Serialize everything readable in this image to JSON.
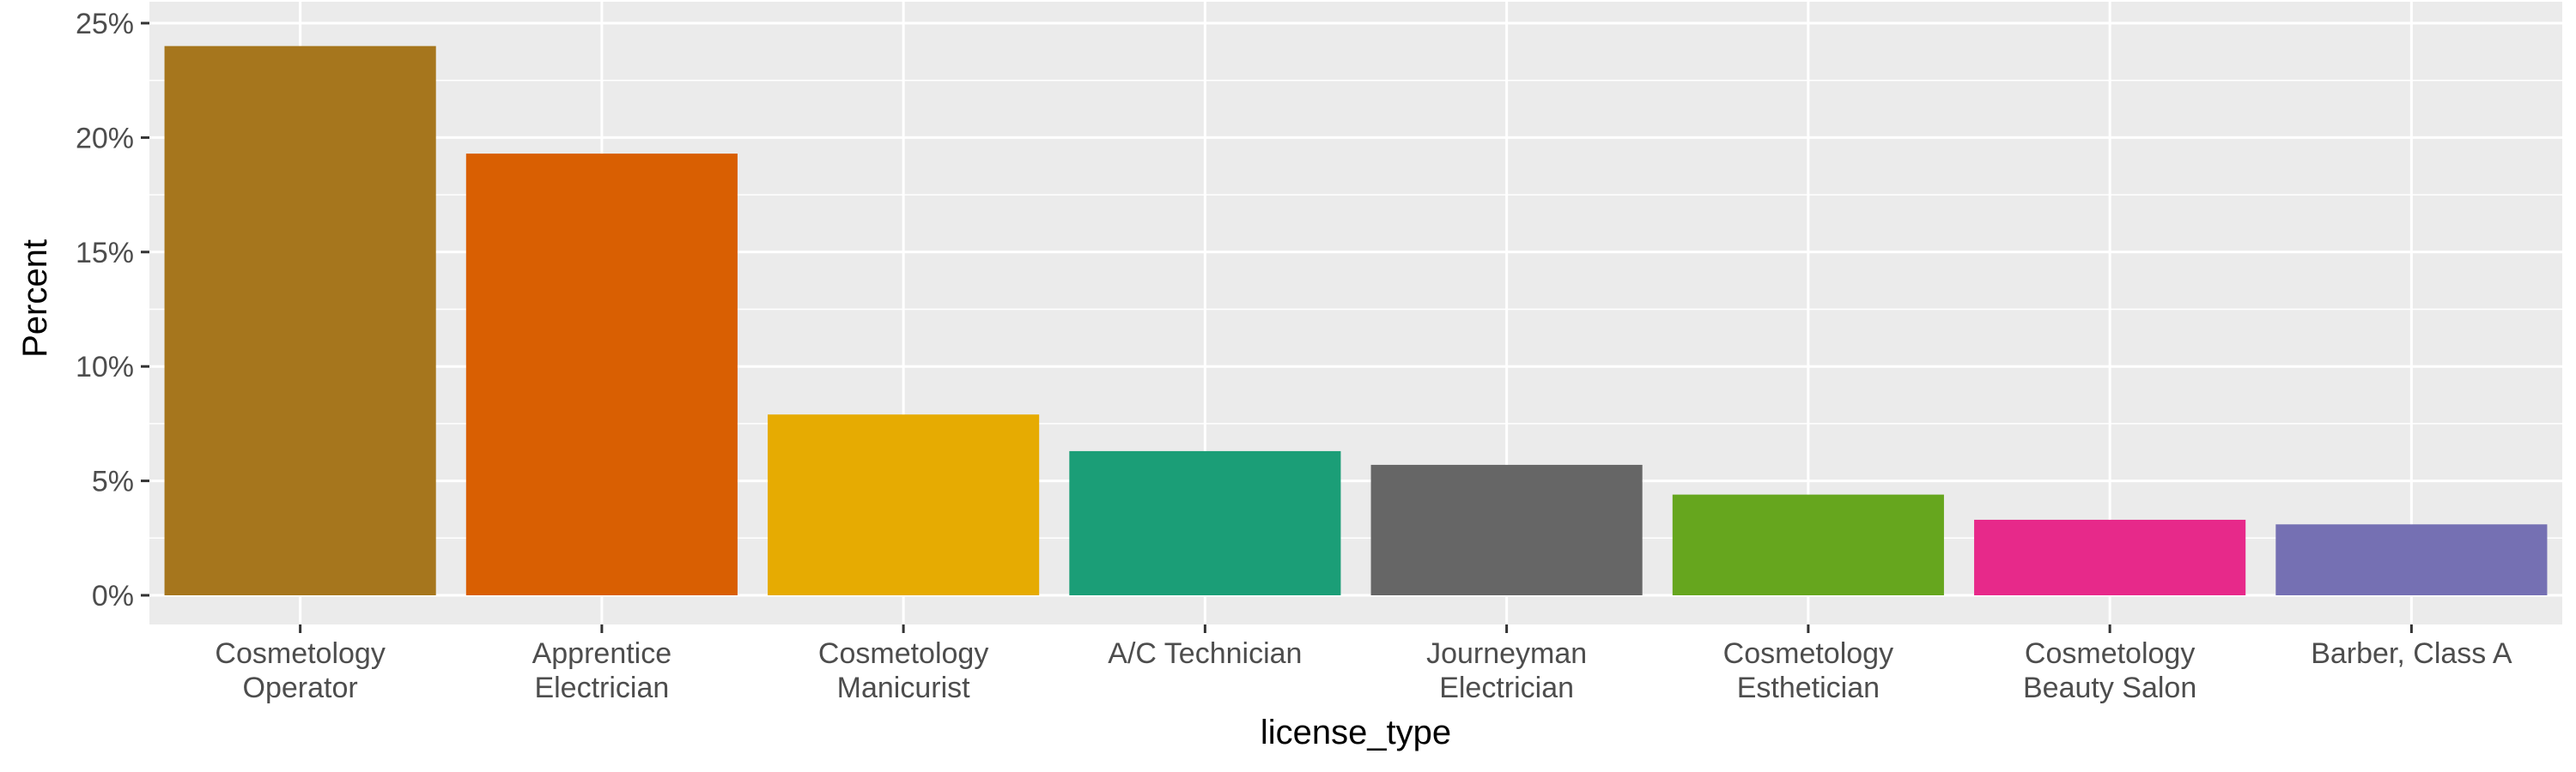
{
  "chart_data": {
    "type": "bar",
    "xlabel": "license_type",
    "ylabel": "Percent",
    "categories": [
      [
        "Cosmetology",
        "Operator"
      ],
      [
        "Apprentice",
        "Electrician"
      ],
      [
        "Cosmetology",
        "Manicurist"
      ],
      [
        "A/C Technician"
      ],
      [
        "Journeyman",
        "Electrician"
      ],
      [
        "Cosmetology",
        "Esthetician"
      ],
      [
        "Cosmetology",
        "Beauty Salon"
      ],
      [
        "Barber, Class A"
      ]
    ],
    "values": [
      24.0,
      19.3,
      7.9,
      6.3,
      5.7,
      4.4,
      3.3,
      3.1
    ],
    "colors": [
      "#a6761d",
      "#d95f02",
      "#e6ab02",
      "#1b9e77",
      "#666666",
      "#66a61e",
      "#e7298a",
      "#7570b3"
    ],
    "ylim": [
      0,
      25
    ],
    "yticks": [
      0,
      5,
      10,
      15,
      20,
      25
    ],
    "ytick_labels": [
      "0%",
      "5%",
      "10%",
      "15%",
      "20%",
      "25%"
    ],
    "panel_background": "#ebebeb",
    "grid": true,
    "legend": "none"
  }
}
